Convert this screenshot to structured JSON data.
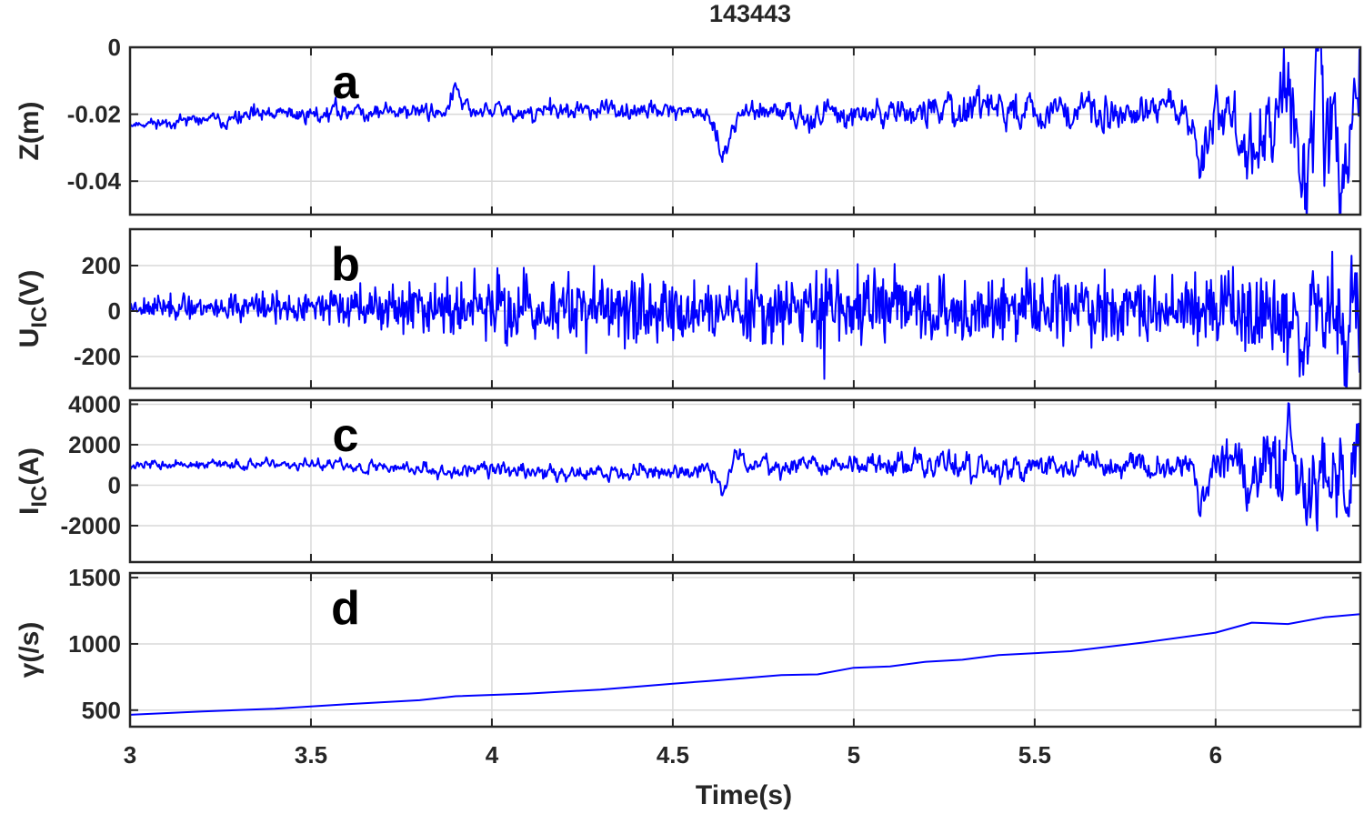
{
  "chart_data": {
    "type": "line",
    "title": "143443",
    "xlabel": "Time(s)",
    "xlim": [
      3,
      6.4
    ],
    "xticks": [
      3,
      3.5,
      4,
      4.5,
      5,
      5.5,
      6
    ],
    "xtick_labels": [
      "3",
      "3.5",
      "4",
      "4.5",
      "5",
      "5.5",
      "6"
    ],
    "grid": true,
    "line_color": "#0000ff",
    "panels": [
      {
        "id": "a",
        "letter": "a",
        "ylabel": {
          "main": "Z(m)",
          "sub": "",
          "suffix": ""
        },
        "ylim": [
          -0.05,
          0
        ],
        "yticks": [
          0,
          -0.02,
          -0.04
        ],
        "ytick_labels": [
          "0",
          "-0.02",
          "-0.04"
        ],
        "series": [
          {
            "noise": 0.004,
            "seed": 11,
            "base": [
              [
                3.0,
                -0.023
              ],
              [
                3.3,
                -0.021
              ],
              [
                3.6,
                -0.019
              ],
              [
                4.0,
                -0.019
              ],
              [
                4.6,
                -0.019
              ],
              [
                4.9,
                -0.02
              ],
              [
                5.2,
                -0.019
              ],
              [
                6.0,
                -0.019
              ],
              [
                6.4,
                -0.02
              ]
            ],
            "amp": [
              [
                3.0,
                0.001
              ],
              [
                3.4,
                0.002
              ],
              [
                3.8,
                0.002
              ],
              [
                4.6,
                0.002
              ],
              [
                4.65,
                0.002
              ],
              [
                5.0,
                0.003
              ],
              [
                5.5,
                0.004
              ],
              [
                5.9,
                0.004
              ],
              [
                6.0,
                0.006
              ],
              [
                6.2,
                0.012
              ],
              [
                6.4,
                0.015
              ]
            ],
            "events": [
              [
                3.9,
                0.006,
                0.02
              ],
              [
                4.64,
                -0.012,
                0.03
              ],
              [
                5.26,
                0.006,
                0.01
              ],
              [
                5.96,
                -0.015,
                0.02
              ],
              [
                6.09,
                -0.012,
                0.02
              ],
              [
                6.17,
                -0.013,
                0.015
              ],
              [
                6.25,
                -0.018,
                0.02
              ],
              [
                6.36,
                -0.02,
                0.015
              ]
            ]
          }
        ]
      },
      {
        "id": "b",
        "letter": "b",
        "ylabel": {
          "main": "U",
          "sub": "IC",
          "suffix": "(V)"
        },
        "ylim": [
          -340,
          360
        ],
        "yticks": [
          200,
          0,
          -200
        ],
        "ytick_labels": [
          "200",
          "0",
          "-200"
        ],
        "series": [
          {
            "noise": 1.0,
            "seed": 23,
            "base": [
              [
                3.0,
                20
              ],
              [
                3.5,
                15
              ],
              [
                4.0,
                10
              ],
              [
                5.0,
                10
              ],
              [
                6.0,
                5
              ],
              [
                6.4,
                0
              ]
            ],
            "amp": [
              [
                3.0,
                30
              ],
              [
                3.5,
                50
              ],
              [
                3.8,
                80
              ],
              [
                4.0,
                100
              ],
              [
                4.6,
                110
              ],
              [
                4.65,
                70
              ],
              [
                4.7,
                110
              ],
              [
                5.5,
                115
              ],
              [
                6.0,
                125
              ],
              [
                6.3,
                150
              ],
              [
                6.4,
                170
              ]
            ],
            "events": [
              [
                6.24,
                -180,
                0.01
              ],
              [
                6.36,
                -160,
                0.01
              ]
            ]
          }
        ]
      },
      {
        "id": "c",
        "letter": "c",
        "ylabel": {
          "main": "I",
          "sub": "IC",
          "suffix": "(A)"
        },
        "ylim": [
          -3800,
          4200
        ],
        "yticks": [
          4000,
          2000,
          0,
          -2000
        ],
        "ytick_labels": [
          "4000",
          "2000",
          "0",
          "-2000"
        ],
        "series": [
          {
            "noise": 0.35,
            "seed": 37,
            "base": [
              [
                3.0,
                1000
              ],
              [
                3.5,
                1000
              ],
              [
                3.8,
                800
              ],
              [
                4.2,
                600
              ],
              [
                4.6,
                700
              ],
              [
                4.63,
                400
              ],
              [
                4.66,
                1300
              ],
              [
                4.8,
                1000
              ],
              [
                5.0,
                1000
              ],
              [
                5.5,
                900
              ],
              [
                6.0,
                1000
              ],
              [
                6.4,
                1100
              ]
            ],
            "amp": [
              [
                3.0,
                150
              ],
              [
                3.5,
                200
              ],
              [
                4.0,
                300
              ],
              [
                4.6,
                300
              ],
              [
                4.7,
                350
              ],
              [
                5.0,
                400
              ],
              [
                5.5,
                500
              ],
              [
                5.9,
                500
              ],
              [
                6.0,
                800
              ],
              [
                6.2,
                1600
              ],
              [
                6.4,
                1800
              ]
            ],
            "events": [
              [
                4.64,
                -1000,
                0.015
              ],
              [
                5.96,
                -2000,
                0.02
              ],
              [
                6.09,
                -1500,
                0.015
              ],
              [
                6.25,
                -2200,
                0.015
              ],
              [
                6.36,
                -2400,
                0.012
              ]
            ]
          }
        ]
      },
      {
        "id": "d",
        "letter": "d",
        "ylabel": {
          "main": "γ(/s)",
          "sub": "",
          "suffix": ""
        },
        "ylim": [
          375,
          1535
        ],
        "yticks": [
          1500,
          1000,
          500
        ],
        "ytick_labels": [
          "1500",
          "1000",
          "500"
        ],
        "series": [
          {
            "noise": 0,
            "seed": 0,
            "points": [
              [
                3.0,
                465
              ],
              [
                3.2,
                490
              ],
              [
                3.4,
                510
              ],
              [
                3.6,
                545
              ],
              [
                3.8,
                575
              ],
              [
                3.9,
                605
              ],
              [
                4.1,
                625
              ],
              [
                4.3,
                655
              ],
              [
                4.5,
                700
              ],
              [
                4.6,
                720
              ],
              [
                4.8,
                765
              ],
              [
                4.9,
                770
              ],
              [
                5.0,
                820
              ],
              [
                5.1,
                830
              ],
              [
                5.2,
                865
              ],
              [
                5.3,
                880
              ],
              [
                5.4,
                915
              ],
              [
                5.6,
                945
              ],
              [
                5.8,
                1010
              ],
              [
                6.0,
                1085
              ],
              [
                6.1,
                1160
              ],
              [
                6.2,
                1150
              ],
              [
                6.3,
                1200
              ],
              [
                6.4,
                1225
              ]
            ]
          }
        ]
      }
    ]
  }
}
